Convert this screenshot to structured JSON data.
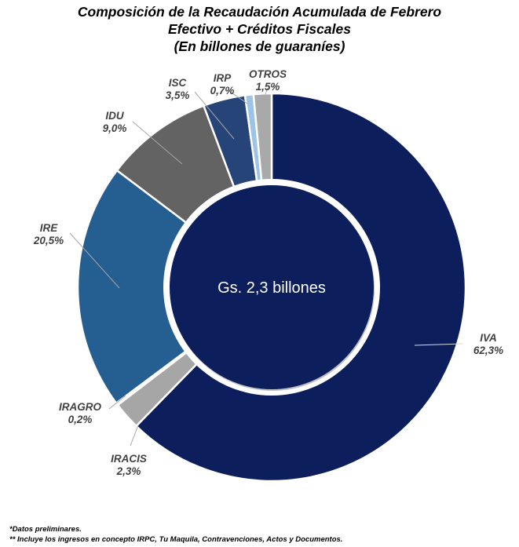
{
  "chart_data": {
    "type": "pie",
    "title": "Composición de la Recaudación Acumulada de Febrero",
    "subtitle": "Efectivo + Créditos Fiscales",
    "subtitle2": "(En billones de guaraníes)",
    "center_label": "Gs. 2,3 billones",
    "categories": [
      "IVA",
      "IRACIS",
      "IRAGRO",
      "IRE",
      "IDU",
      "ISC",
      "IRP",
      "OTROS"
    ],
    "values": [
      62.3,
      2.3,
      0.2,
      20.5,
      9.0,
      3.5,
      0.7,
      1.5
    ],
    "value_labels": [
      "62,3%",
      "2,3%",
      "0,2%",
      "20,5%",
      "9,0%",
      "3,5%",
      "0,7%",
      "1,5%"
    ],
    "colors": [
      "#0c1f5c",
      "#a6a6a6",
      "#d0d0d0",
      "#255e91",
      "#636363",
      "#264478",
      "#9dc3e6",
      "#a9a9a9"
    ],
    "center_color": "#0c1f5c",
    "legend": "none"
  },
  "footnotes": [
    "*Datos preliminares.",
    "** Incluye los ingresos en concepto IRPC, Tu Maquila, Contravenciones, Actos y Documentos."
  ]
}
